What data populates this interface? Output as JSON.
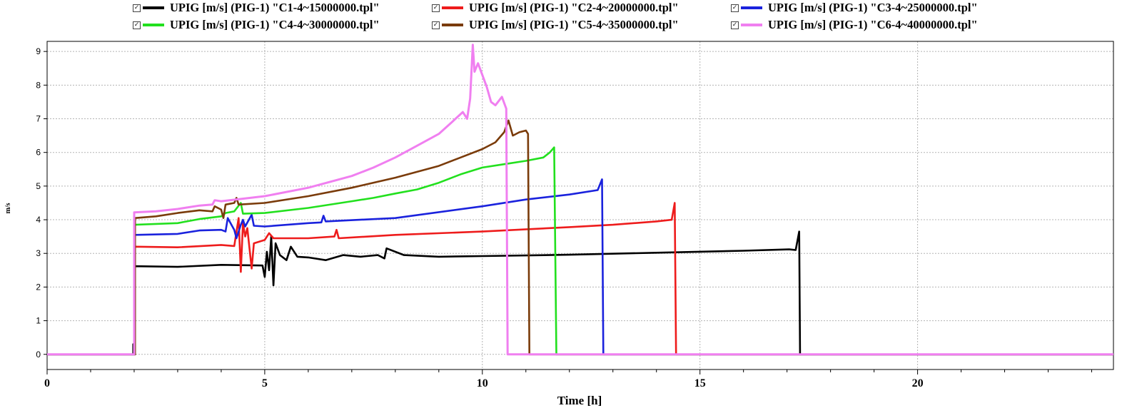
{
  "chart_data": {
    "type": "line",
    "title": "",
    "xlabel": "Time [h]",
    "ylabel": "m/s",
    "xlim": [
      0,
      24.5
    ],
    "ylim": [
      -0.45,
      9.3
    ],
    "xticks": [
      0,
      5,
      10,
      15,
      20
    ],
    "yticks": [
      0,
      1,
      2,
      3,
      4,
      5,
      6,
      7,
      8,
      9
    ],
    "grid": true,
    "legend_position": "top",
    "legend_checked_mark": "☑",
    "series": [
      {
        "name": "UPIG [m/s] (PIG-1) \"C1-4~15000000.tpl\"",
        "color": "#000000",
        "points": [
          [
            0,
            0
          ],
          [
            1.98,
            0
          ],
          [
            1.98,
            0.3
          ],
          [
            2.0,
            0
          ],
          [
            2.02,
            2.62
          ],
          [
            3.0,
            2.6
          ],
          [
            4.0,
            2.66
          ],
          [
            4.95,
            2.64
          ],
          [
            5.0,
            2.3
          ],
          [
            5.05,
            3.05
          ],
          [
            5.1,
            2.5
          ],
          [
            5.15,
            3.5
          ],
          [
            5.2,
            2.05
          ],
          [
            5.25,
            3.3
          ],
          [
            5.35,
            2.95
          ],
          [
            5.5,
            2.8
          ],
          [
            5.6,
            3.2
          ],
          [
            5.75,
            2.9
          ],
          [
            6.0,
            2.88
          ],
          [
            6.4,
            2.8
          ],
          [
            6.8,
            2.95
          ],
          [
            7.2,
            2.9
          ],
          [
            7.6,
            2.95
          ],
          [
            7.75,
            2.85
          ],
          [
            7.8,
            3.15
          ],
          [
            8.2,
            2.95
          ],
          [
            9.0,
            2.9
          ],
          [
            10.0,
            2.92
          ],
          [
            12.0,
            2.96
          ],
          [
            14.0,
            3.02
          ],
          [
            16.0,
            3.08
          ],
          [
            17.05,
            3.12
          ],
          [
            17.2,
            3.1
          ],
          [
            17.28,
            3.65
          ],
          [
            17.3,
            0.05
          ],
          [
            17.3,
            0
          ],
          [
            24.5,
            0
          ]
        ]
      },
      {
        "name": "UPIG [m/s] (PIG-1) \"C2-4~20000000.tpl\"",
        "color": "#ee1c1c",
        "points": [
          [
            0,
            0
          ],
          [
            2.02,
            0
          ],
          [
            2.02,
            3.2
          ],
          [
            3.0,
            3.18
          ],
          [
            4.0,
            3.25
          ],
          [
            4.3,
            3.22
          ],
          [
            4.4,
            4.05
          ],
          [
            4.45,
            2.45
          ],
          [
            4.5,
            3.9
          ],
          [
            4.55,
            3.5
          ],
          [
            4.6,
            3.75
          ],
          [
            4.7,
            2.55
          ],
          [
            4.75,
            3.3
          ],
          [
            5.0,
            3.4
          ],
          [
            5.1,
            3.6
          ],
          [
            5.2,
            3.45
          ],
          [
            6.0,
            3.45
          ],
          [
            6.6,
            3.5
          ],
          [
            6.65,
            3.7
          ],
          [
            6.7,
            3.45
          ],
          [
            8.0,
            3.55
          ],
          [
            10.0,
            3.65
          ],
          [
            12.0,
            3.78
          ],
          [
            13.0,
            3.85
          ],
          [
            14.0,
            3.95
          ],
          [
            14.35,
            4.0
          ],
          [
            14.42,
            4.5
          ],
          [
            14.45,
            0
          ],
          [
            24.5,
            0
          ]
        ]
      },
      {
        "name": "UPIG [m/s] (PIG-1) \"C3-4~25000000.tpl\"",
        "color": "#1a22dd",
        "points": [
          [
            0,
            0
          ],
          [
            2.02,
            0
          ],
          [
            2.02,
            3.55
          ],
          [
            3.0,
            3.58
          ],
          [
            3.5,
            3.68
          ],
          [
            4.0,
            3.7
          ],
          [
            4.1,
            3.65
          ],
          [
            4.15,
            4.05
          ],
          [
            4.3,
            3.7
          ],
          [
            4.35,
            3.45
          ],
          [
            4.45,
            3.85
          ],
          [
            4.5,
            4.0
          ],
          [
            4.55,
            3.8
          ],
          [
            4.7,
            4.15
          ],
          [
            4.75,
            3.82
          ],
          [
            5.0,
            3.8
          ],
          [
            6.0,
            3.9
          ],
          [
            6.3,
            3.92
          ],
          [
            6.35,
            4.12
          ],
          [
            6.4,
            3.95
          ],
          [
            8.0,
            4.05
          ],
          [
            10.0,
            4.4
          ],
          [
            11.0,
            4.6
          ],
          [
            12.0,
            4.75
          ],
          [
            12.65,
            4.88
          ],
          [
            12.75,
            5.2
          ],
          [
            12.78,
            0
          ],
          [
            24.5,
            0
          ]
        ]
      },
      {
        "name": "UPIG [m/s] (PIG-1) \"C4-4~30000000.tpl\"",
        "color": "#22e01e",
        "points": [
          [
            0,
            0
          ],
          [
            2.02,
            0
          ],
          [
            2.02,
            3.85
          ],
          [
            3.0,
            3.9
          ],
          [
            3.5,
            4.02
          ],
          [
            4.0,
            4.1
          ],
          [
            4.1,
            4.2
          ],
          [
            4.3,
            4.25
          ],
          [
            4.45,
            4.5
          ],
          [
            4.5,
            4.18
          ],
          [
            5.0,
            4.2
          ],
          [
            6.0,
            4.35
          ],
          [
            7.0,
            4.55
          ],
          [
            7.5,
            4.65
          ],
          [
            8.0,
            4.78
          ],
          [
            8.5,
            4.9
          ],
          [
            9.0,
            5.1
          ],
          [
            9.5,
            5.35
          ],
          [
            10.0,
            5.55
          ],
          [
            10.5,
            5.65
          ],
          [
            11.0,
            5.75
          ],
          [
            11.4,
            5.85
          ],
          [
            11.55,
            6.0
          ],
          [
            11.65,
            6.15
          ],
          [
            11.7,
            0
          ],
          [
            24.5,
            0
          ]
        ]
      },
      {
        "name": "UPIG [m/s] (PIG-1) \"C5-4~35000000.tpl\"",
        "color": "#7a3b0a",
        "points": [
          [
            0,
            0
          ],
          [
            2.02,
            0
          ],
          [
            2.02,
            4.05
          ],
          [
            2.5,
            4.1
          ],
          [
            3.0,
            4.2
          ],
          [
            3.5,
            4.28
          ],
          [
            3.8,
            4.25
          ],
          [
            3.85,
            4.4
          ],
          [
            4.0,
            4.3
          ],
          [
            4.05,
            4.05
          ],
          [
            4.1,
            4.45
          ],
          [
            4.3,
            4.5
          ],
          [
            4.35,
            4.65
          ],
          [
            4.4,
            4.45
          ],
          [
            5.0,
            4.5
          ],
          [
            6.0,
            4.7
          ],
          [
            7.0,
            4.95
          ],
          [
            8.0,
            5.25
          ],
          [
            9.0,
            5.6
          ],
          [
            9.5,
            5.85
          ],
          [
            10.0,
            6.1
          ],
          [
            10.3,
            6.3
          ],
          [
            10.5,
            6.6
          ],
          [
            10.6,
            6.95
          ],
          [
            10.7,
            6.5
          ],
          [
            10.85,
            6.6
          ],
          [
            11.0,
            6.65
          ],
          [
            11.05,
            6.55
          ],
          [
            11.08,
            0
          ],
          [
            24.5,
            0
          ]
        ]
      },
      {
        "name": "UPIG [m/s] (PIG-1) \"C6-4~40000000.tpl\"",
        "color": "#f07ff0",
        "points": [
          [
            0,
            0
          ],
          [
            2.0,
            0
          ],
          [
            2.0,
            4.22
          ],
          [
            2.5,
            4.25
          ],
          [
            3.0,
            4.32
          ],
          [
            3.5,
            4.42
          ],
          [
            3.8,
            4.45
          ],
          [
            3.85,
            4.58
          ],
          [
            4.0,
            4.55
          ],
          [
            5.0,
            4.7
          ],
          [
            6.0,
            4.95
          ],
          [
            7.0,
            5.3
          ],
          [
            7.5,
            5.55
          ],
          [
            8.0,
            5.85
          ],
          [
            8.5,
            6.2
          ],
          [
            9.0,
            6.55
          ],
          [
            9.3,
            6.9
          ],
          [
            9.55,
            7.2
          ],
          [
            9.65,
            7.0
          ],
          [
            9.72,
            7.6
          ],
          [
            9.78,
            9.2
          ],
          [
            9.82,
            8.4
          ],
          [
            9.9,
            8.65
          ],
          [
            10.0,
            8.3
          ],
          [
            10.1,
            7.95
          ],
          [
            10.2,
            7.5
          ],
          [
            10.3,
            7.4
          ],
          [
            10.45,
            7.65
          ],
          [
            10.55,
            7.3
          ],
          [
            10.58,
            0
          ],
          [
            24.5,
            0
          ]
        ]
      }
    ]
  }
}
